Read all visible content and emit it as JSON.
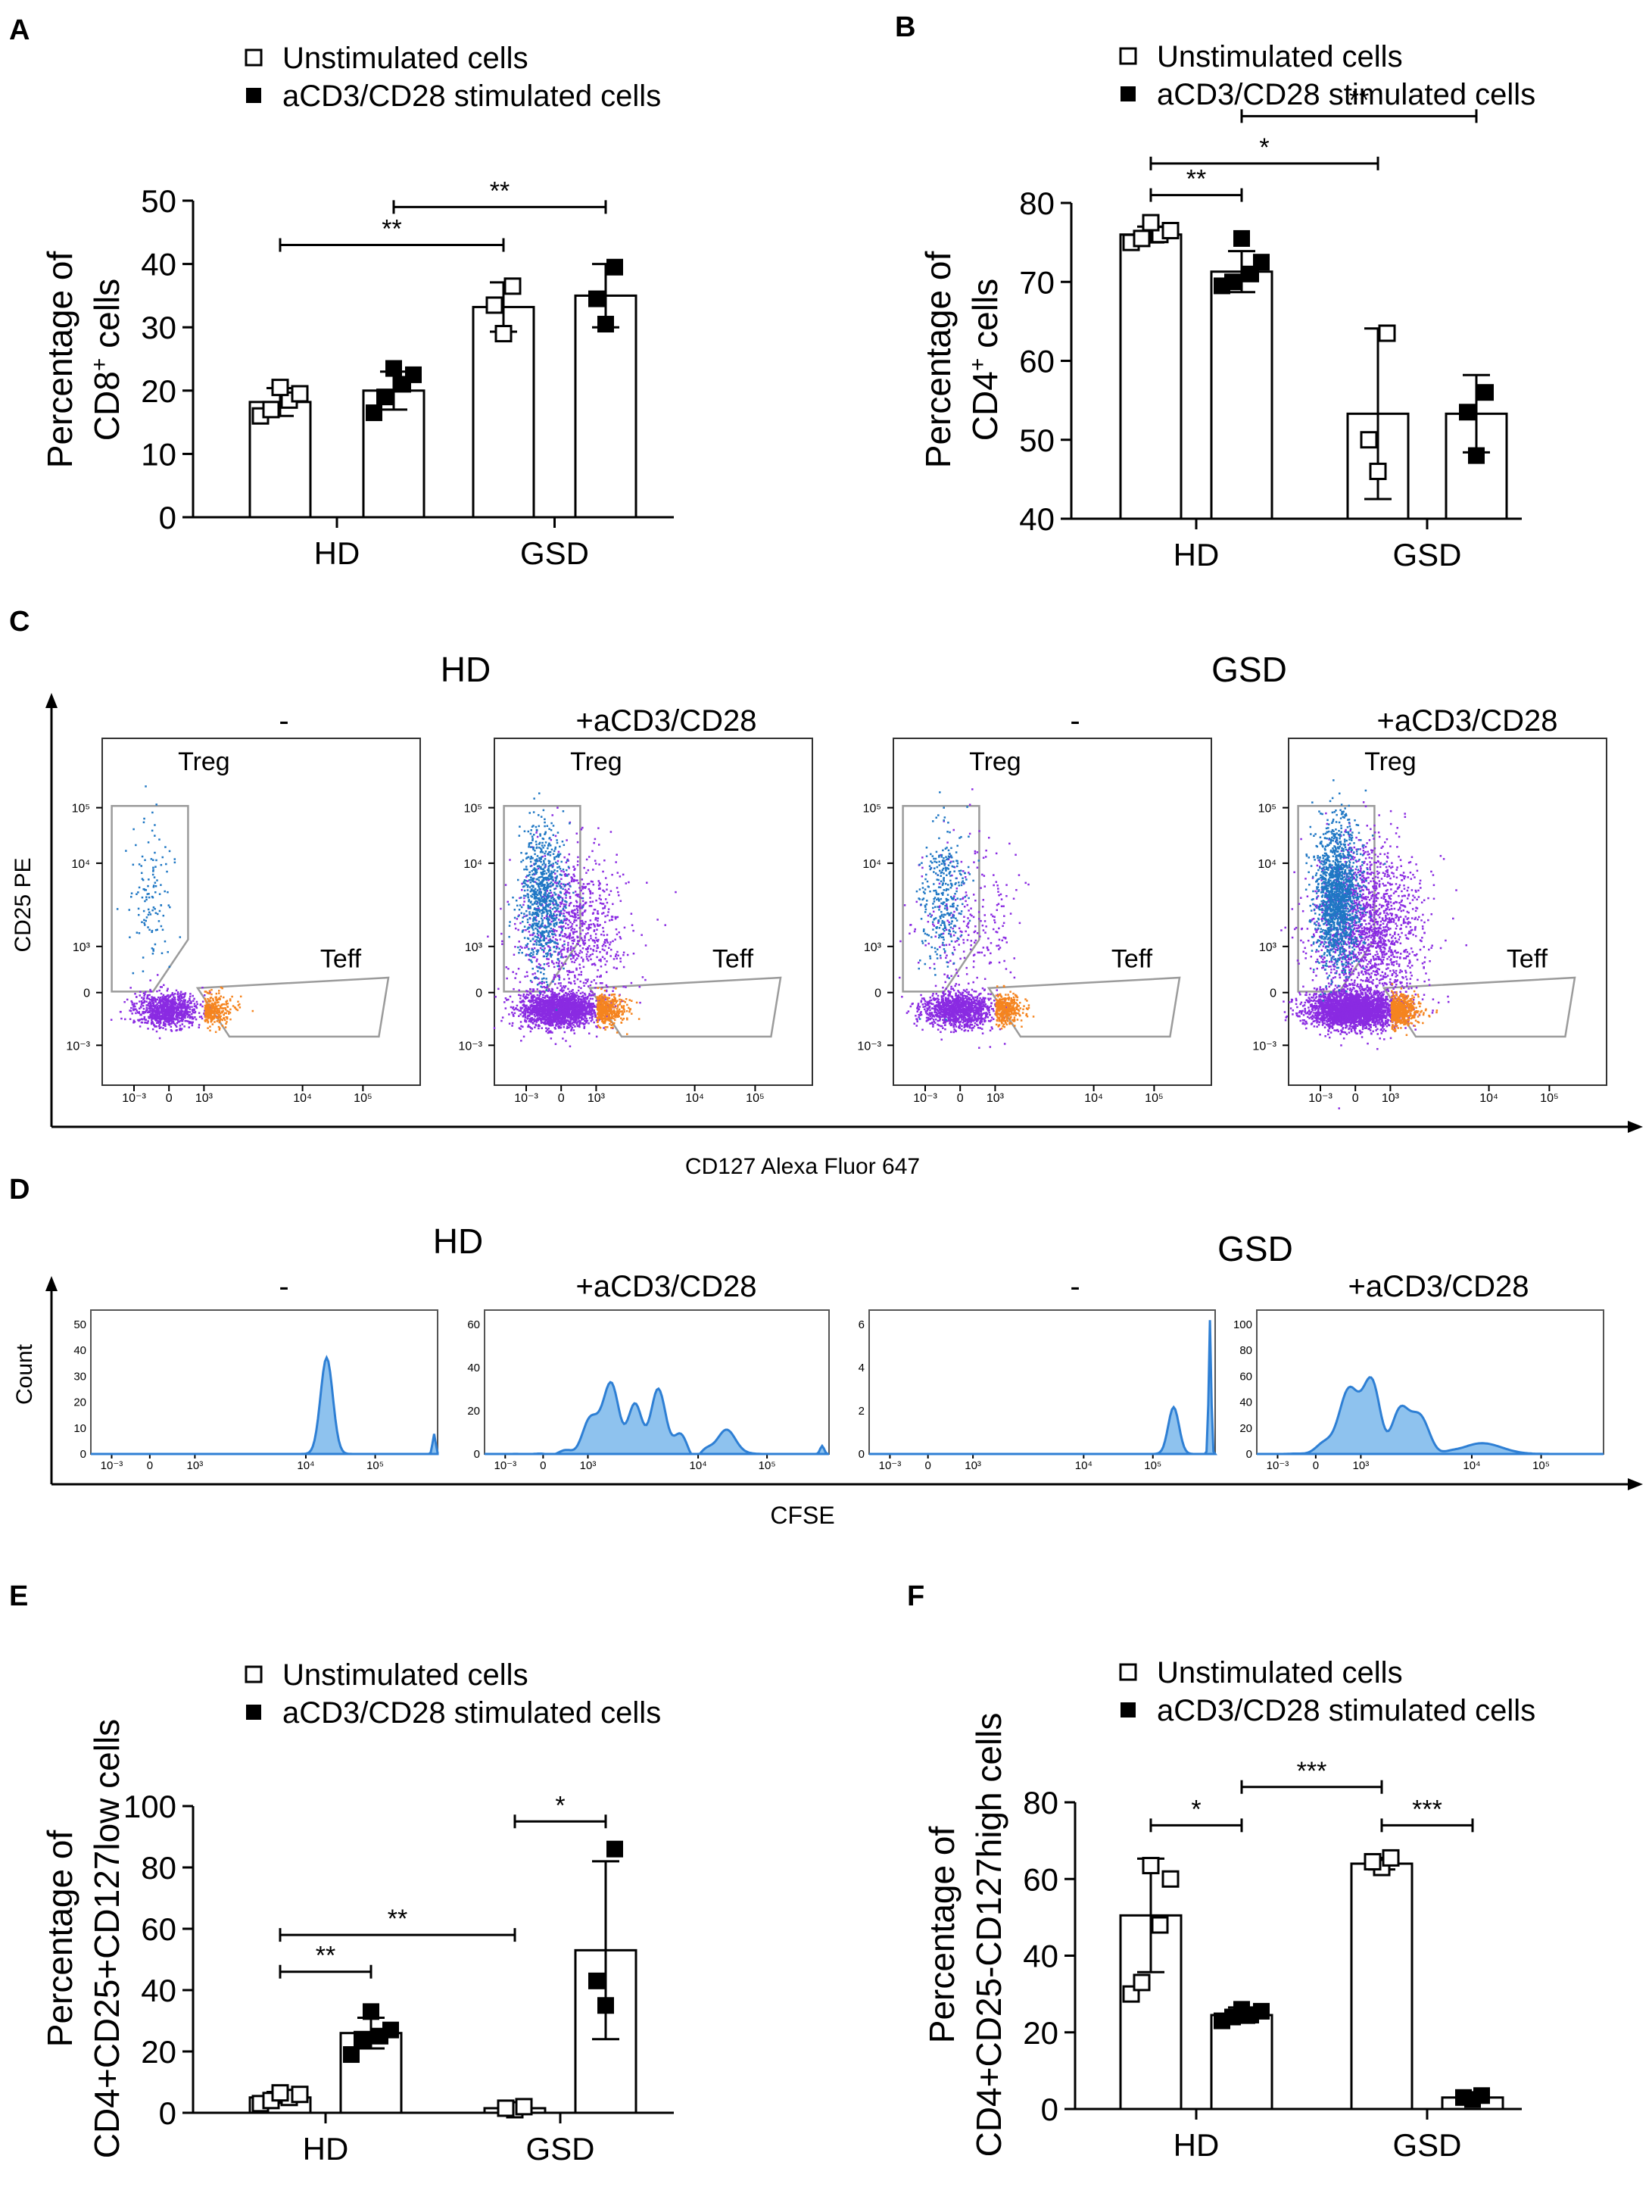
{
  "colors": {
    "axis": "#000000",
    "blue": "#1f77c4",
    "purple": "#8a2be2",
    "orange": "#f5841f",
    "histFill": "#8ec2ee",
    "histLine": "#2e7fd4",
    "gate": "#9b9b9b"
  },
  "legend": {
    "unstim": "Unstimulated cells",
    "stim": "aCD3/CD28 stimulated cells"
  },
  "chart_data": [
    {
      "id": "A",
      "panel_label": "A",
      "type": "bar",
      "ylabel_top": "Percentage of",
      "ylabel_bottom": "CD8",
      "ylabel_sup": "+",
      "ylabel_end": " cells",
      "categories": [
        "HD",
        "GSD"
      ],
      "ylim": [
        0,
        50
      ],
      "yticks": [
        "0",
        "10",
        "20",
        "30",
        "40",
        "50"
      ],
      "series": [
        {
          "name": "Unstimulated cells",
          "values": [
            18.2,
            33.2
          ],
          "err": [
            2.2,
            3.9
          ],
          "points": [
            [
              16,
              17,
              18.5,
              19.5,
              20.5
            ],
            [
              29,
              33.5,
              36.5
            ]
          ]
        },
        {
          "name": "aCD3/CD28 stimulated cells",
          "values": [
            20.0,
            35.0
          ],
          "err": [
            3.0,
            5.0
          ],
          "points": [
            [
              16.5,
              19,
              21,
              22.5,
              23.5
            ],
            [
              30.5,
              34.5,
              39.5
            ]
          ]
        }
      ],
      "sig": [
        {
          "label": "**",
          "from": [
            0,
            0
          ],
          "to": [
            1,
            0
          ],
          "y": 43
        },
        {
          "label": "**",
          "from": [
            0,
            1
          ],
          "to": [
            1,
            1
          ],
          "y": 49
        }
      ]
    },
    {
      "id": "B",
      "panel_label": "B",
      "type": "bar",
      "ylabel_top": "Percentage of",
      "ylabel_bottom": "CD4",
      "ylabel_sup": "+",
      "ylabel_end": " cells",
      "categories": [
        "HD",
        "GSD"
      ],
      "ylim": [
        40,
        80
      ],
      "yticks": [
        "40",
        "50",
        "60",
        "70",
        "80"
      ],
      "series": [
        {
          "name": "Unstimulated cells",
          "values": [
            76.0,
            53.3
          ],
          "err": [
            1.0,
            10.8
          ],
          "points": [
            [
              75,
              75.5,
              76,
              76.5,
              77.5
            ],
            [
              46,
              50,
              63.5
            ]
          ]
        },
        {
          "name": "aCD3/CD28 stimulated cells",
          "values": [
            71.3,
            53.3
          ],
          "err": [
            2.6,
            4.9
          ],
          "points": [
            [
              69.5,
              70,
              71,
              72.5,
              75.5
            ],
            [
              48,
              53.5,
              56
            ]
          ]
        }
      ],
      "sig": [
        {
          "label": "**",
          "from": [
            0,
            0
          ],
          "to": [
            0,
            1
          ],
          "y": 81
        },
        {
          "label": "*",
          "from": [
            0,
            0
          ],
          "to": [
            1,
            0
          ],
          "y": 85
        },
        {
          "label": "**",
          "from": [
            0,
            1
          ],
          "to": [
            1,
            1
          ],
          "y": 91
        }
      ]
    },
    {
      "id": "E",
      "panel_label": "E",
      "type": "bar",
      "ylabel_top": "Percentage of",
      "ylabel_bottom": "CD4+CD25+CD127low cells",
      "categories": [
        "HD",
        "GSD"
      ],
      "ylim": [
        0,
        100
      ],
      "yticks": [
        "0",
        "20",
        "40",
        "60",
        "80",
        "100"
      ],
      "series": [
        {
          "name": "Unstimulated cells",
          "values": [
            5.0,
            1.5
          ],
          "err": [
            1.8,
            0.8
          ],
          "points": [
            [
              3,
              4,
              5,
              6,
              6.5
            ],
            [
              1,
              1.5,
              2
            ]
          ]
        },
        {
          "name": "aCD3/CD28 stimulated cells",
          "values": [
            26.0,
            53.0
          ],
          "err": [
            5.0,
            29.0
          ],
          "points": [
            [
              19,
              24,
              25,
              27,
              33
            ],
            [
              35,
              43,
              86
            ]
          ]
        }
      ],
      "sig": [
        {
          "label": "**",
          "from": [
            0,
            0
          ],
          "to": [
            0,
            1
          ],
          "y": 46
        },
        {
          "label": "**",
          "from": [
            0,
            0
          ],
          "to": [
            1,
            0
          ],
          "y": 58
        },
        {
          "label": "*",
          "from": [
            1,
            0
          ],
          "to": [
            1,
            1
          ],
          "y": 95
        }
      ]
    },
    {
      "id": "F",
      "panel_label": "F",
      "type": "bar",
      "ylabel_top": "Percentage of",
      "ylabel_bottom": "CD4+CD25-CD127high cells",
      "categories": [
        "HD",
        "GSD"
      ],
      "ylim": [
        0,
        80
      ],
      "yticks": [
        "0",
        "20",
        "40",
        "60",
        "80"
      ],
      "series": [
        {
          "name": "Unstimulated cells",
          "values": [
            50.5,
            64.0
          ],
          "err": [
            14.8,
            1.5
          ],
          "points": [
            [
              30,
              33,
              48,
              60,
              63.5
            ],
            [
              63,
              64.5,
              65.5
            ]
          ]
        },
        {
          "name": "aCD3/CD28 stimulated cells",
          "values": [
            24.5,
            3.0
          ],
          "err": [
            2.0,
            0.6
          ],
          "points": [
            [
              23,
              24,
              24.5,
              25.5,
              26
            ],
            [
              2.5,
              3,
              3.5
            ]
          ]
        }
      ],
      "sig": [
        {
          "label": "*",
          "from": [
            0,
            0
          ],
          "to": [
            0,
            1
          ],
          "y": 74
        },
        {
          "label": "***",
          "from": [
            0,
            1
          ],
          "to": [
            1,
            0
          ],
          "y": 84
        },
        {
          "label": "***",
          "from": [
            1,
            0
          ],
          "to": [
            1,
            1
          ],
          "y": 74
        }
      ]
    }
  ],
  "panelC": {
    "label": "C",
    "title_hd": "HD",
    "title_gsd": "GSD",
    "conditions": [
      "-",
      "+aCD3/CD28",
      "-",
      "+aCD3/CD28"
    ],
    "ylabel": "CD25 PE",
    "xlabel": "CD127 Alexa Fluor 647",
    "gate_treg": "Treg",
    "gate_teff": "Teff",
    "yticks": [
      "10⁵",
      "10⁴",
      "10³",
      "0",
      "10⁻³"
    ],
    "xticks": [
      "10⁻³",
      "0",
      "10³",
      "10⁴",
      "10⁵"
    ]
  },
  "panelD": {
    "label": "D",
    "title_hd": "HD",
    "title_gsd": "GSD",
    "conditions": [
      "-",
      "+aCD3/CD28",
      "-",
      "+aCD3/CD28"
    ],
    "ylabel": "Count",
    "xlabel": "CFSE",
    "xticks": [
      "10⁻³",
      "0",
      "10³",
      "10⁴",
      "10⁵"
    ],
    "yticks": [
      [
        "0",
        "10",
        "20",
        "30",
        "40",
        "50"
      ],
      [
        "0",
        "20",
        "40",
        "60"
      ],
      [
        "0",
        "2",
        "4",
        "6"
      ],
      [
        "0",
        "20",
        "40",
        "60",
        "80",
        "100"
      ]
    ]
  }
}
